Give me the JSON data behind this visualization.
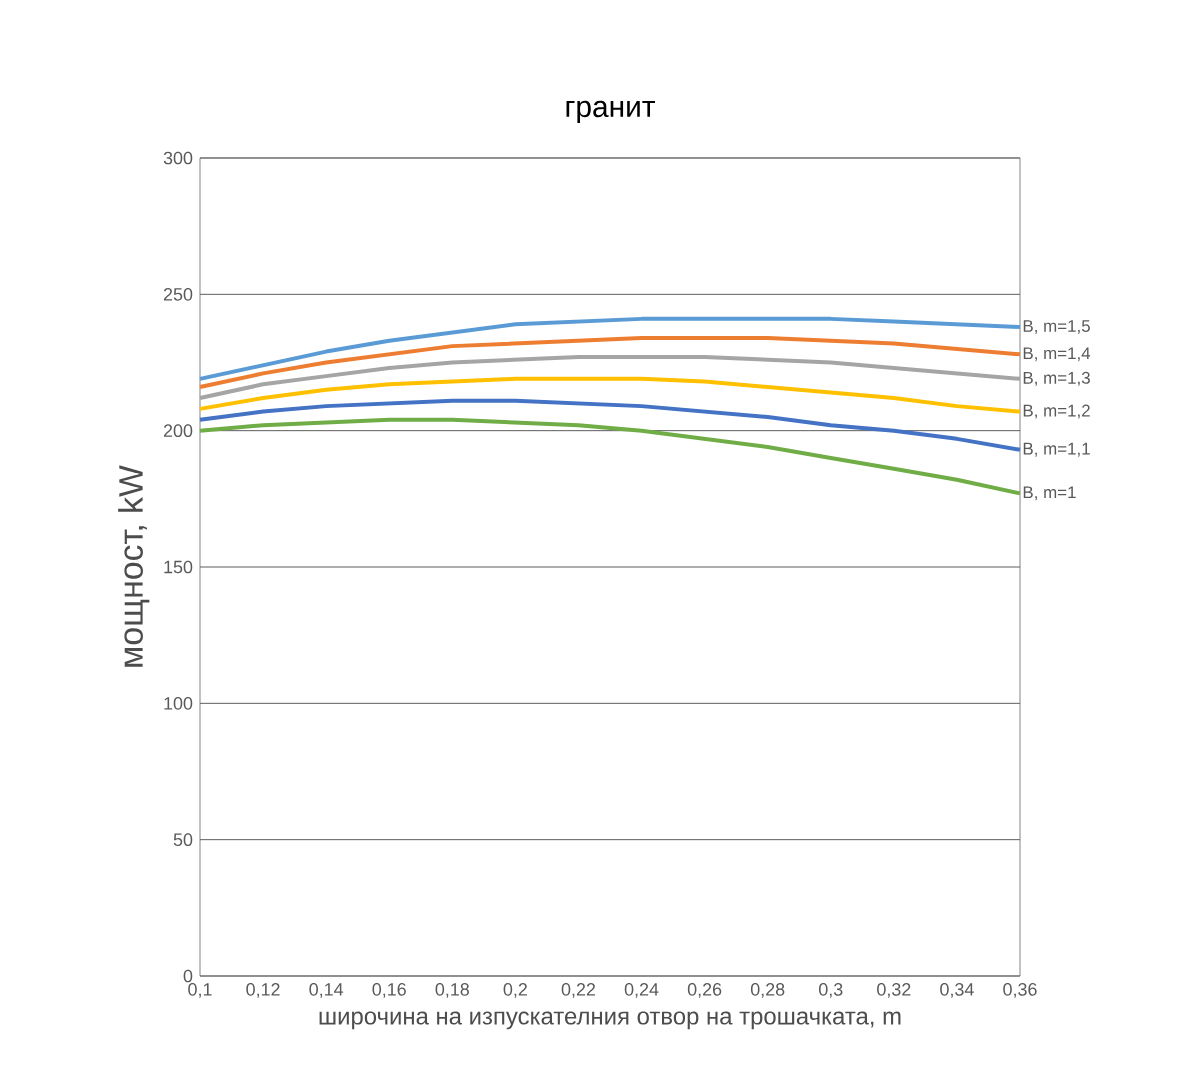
{
  "chart_data": {
    "type": "line",
    "title": "гранит",
    "xlabel": "широчина на изпускателния отвор на трошачката, m",
    "ylabel": "мощност, kW",
    "categories": [
      "0,1",
      "0,12",
      "0,14",
      "0,16",
      "0,18",
      "0,2",
      "0,22",
      "0,24",
      "0,26",
      "0,28",
      "0,3",
      "0,32",
      "0,34",
      "0,36"
    ],
    "ylim": [
      0,
      300
    ],
    "yticks": [
      0,
      50,
      100,
      150,
      200,
      250,
      300
    ],
    "grid": "y",
    "legend": false,
    "marker": "none",
    "line_style": "solid",
    "series": [
      {
        "name": "B, m=1,5",
        "color": "#5b9bd5",
        "values": [
          219,
          224,
          229,
          233,
          236,
          239,
          240,
          241,
          241,
          241,
          241,
          240,
          239,
          238
        ]
      },
      {
        "name": "B, m=1,4",
        "color": "#ed7d31",
        "values": [
          216,
          221,
          225,
          228,
          231,
          232,
          233,
          234,
          234,
          234,
          233,
          232,
          230,
          228
        ]
      },
      {
        "name": "B, m=1,3",
        "color": "#a5a5a5",
        "values": [
          212,
          217,
          220,
          223,
          225,
          226,
          227,
          227,
          227,
          226,
          225,
          223,
          221,
          219
        ]
      },
      {
        "name": "B, m=1,2",
        "color": "#ffc000",
        "values": [
          208,
          212,
          215,
          217,
          218,
          219,
          219,
          219,
          218,
          216,
          214,
          212,
          209,
          207
        ]
      },
      {
        "name": "B, m=1,1",
        "color": "#4472c4",
        "values": [
          204,
          207,
          209,
          210,
          211,
          211,
          210,
          209,
          207,
          205,
          202,
          200,
          197,
          193
        ]
      },
      {
        "name": "B, m=1",
        "color": "#70ad47",
        "values": [
          200,
          202,
          203,
          204,
          204,
          203,
          202,
          200,
          197,
          194,
          190,
          186,
          182,
          177
        ]
      }
    ]
  }
}
